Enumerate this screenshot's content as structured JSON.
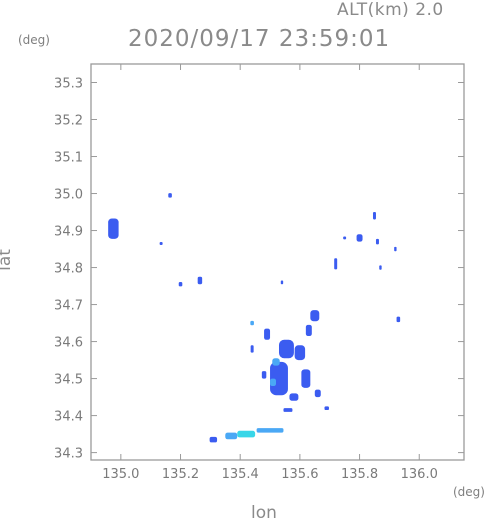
{
  "header": {
    "altitude_label": "ALT(km) 2.0",
    "timestamp": "2020/09/17 23:59:01"
  },
  "chart_data": {
    "type": "heatmap",
    "title": "2020/09/17 23:59:01",
    "xlabel": "lon",
    "ylabel": "lat",
    "x_unit": "(deg)",
    "y_unit": "(deg)",
    "xlim": [
      134.9,
      136.15
    ],
    "ylim": [
      34.28,
      35.35
    ],
    "x_ticks": [
      135.0,
      135.2,
      135.4,
      135.6,
      135.8,
      136.0
    ],
    "x_tick_labels": [
      "135.0",
      "135.2",
      "135.4",
      "135.6",
      "135.8",
      "136.0"
    ],
    "y_ticks": [
      34.3,
      34.4,
      34.5,
      34.6,
      34.7,
      34.8,
      34.9,
      35.0,
      35.1,
      35.2,
      35.3
    ],
    "y_tick_labels": [
      "34.3",
      "34.4",
      "34.5",
      "34.6",
      "34.7",
      "34.8",
      "34.9",
      "35.0",
      "35.1",
      "35.2",
      "35.3"
    ],
    "grid": false,
    "colors": {
      "echo_blue": "#3b5cf0",
      "echo_light": "#4aa8f5",
      "echo_cyan": "#38d6e8",
      "frame": "#9a9a9a"
    },
    "cells": [
      {
        "lon": 134.975,
        "lat": 34.905,
        "c": "echo_blue",
        "w": 0.035,
        "h": 0.055
      },
      {
        "lon": 135.165,
        "lat": 34.995,
        "c": "echo_blue",
        "w": 0.012,
        "h": 0.012
      },
      {
        "lon": 135.135,
        "lat": 34.865,
        "c": "echo_blue",
        "w": 0.01,
        "h": 0.008
      },
      {
        "lon": 135.265,
        "lat": 34.765,
        "c": "echo_blue",
        "w": 0.015,
        "h": 0.02
      },
      {
        "lon": 135.2,
        "lat": 34.755,
        "c": "echo_blue",
        "w": 0.012,
        "h": 0.012
      },
      {
        "lon": 135.54,
        "lat": 34.76,
        "c": "echo_blue",
        "w": 0.008,
        "h": 0.01
      },
      {
        "lon": 135.53,
        "lat": 34.5,
        "c": "echo_blue",
        "w": 0.06,
        "h": 0.09
      },
      {
        "lon": 135.555,
        "lat": 34.58,
        "c": "echo_blue",
        "w": 0.05,
        "h": 0.05
      },
      {
        "lon": 135.6,
        "lat": 34.57,
        "c": "echo_blue",
        "w": 0.035,
        "h": 0.04
      },
      {
        "lon": 135.62,
        "lat": 34.5,
        "c": "echo_blue",
        "w": 0.03,
        "h": 0.05
      },
      {
        "lon": 135.49,
        "lat": 34.62,
        "c": "echo_blue",
        "w": 0.02,
        "h": 0.03
      },
      {
        "lon": 135.65,
        "lat": 34.67,
        "c": "echo_blue",
        "w": 0.03,
        "h": 0.03
      },
      {
        "lon": 135.63,
        "lat": 34.63,
        "c": "echo_blue",
        "w": 0.02,
        "h": 0.03
      },
      {
        "lon": 135.58,
        "lat": 34.45,
        "c": "echo_blue",
        "w": 0.03,
        "h": 0.02
      },
      {
        "lon": 135.66,
        "lat": 34.46,
        "c": "echo_blue",
        "w": 0.02,
        "h": 0.02
      },
      {
        "lon": 135.56,
        "lat": 34.415,
        "c": "echo_blue",
        "w": 0.03,
        "h": 0.01
      },
      {
        "lon": 135.69,
        "lat": 34.42,
        "c": "echo_blue",
        "w": 0.015,
        "h": 0.01
      },
      {
        "lon": 135.48,
        "lat": 34.51,
        "c": "echo_blue",
        "w": 0.015,
        "h": 0.02
      },
      {
        "lon": 135.44,
        "lat": 34.58,
        "c": "echo_blue",
        "w": 0.01,
        "h": 0.02
      },
      {
        "lon": 135.52,
        "lat": 34.545,
        "c": "echo_light",
        "w": 0.025,
        "h": 0.02
      },
      {
        "lon": 135.51,
        "lat": 34.49,
        "c": "echo_light",
        "w": 0.02,
        "h": 0.02
      },
      {
        "lon": 135.44,
        "lat": 34.65,
        "c": "echo_light",
        "w": 0.012,
        "h": 0.012
      },
      {
        "lon": 135.8,
        "lat": 34.88,
        "c": "echo_blue",
        "w": 0.02,
        "h": 0.02
      },
      {
        "lon": 135.85,
        "lat": 34.94,
        "c": "echo_blue",
        "w": 0.01,
        "h": 0.02
      },
      {
        "lon": 135.86,
        "lat": 34.87,
        "c": "echo_blue",
        "w": 0.01,
        "h": 0.015
      },
      {
        "lon": 135.72,
        "lat": 34.81,
        "c": "echo_blue",
        "w": 0.01,
        "h": 0.03
      },
      {
        "lon": 135.87,
        "lat": 34.8,
        "c": "echo_blue",
        "w": 0.008,
        "h": 0.012
      },
      {
        "lon": 135.93,
        "lat": 34.66,
        "c": "echo_blue",
        "w": 0.012,
        "h": 0.015
      },
      {
        "lon": 135.92,
        "lat": 34.85,
        "c": "echo_blue",
        "w": 0.008,
        "h": 0.012
      },
      {
        "lon": 135.75,
        "lat": 34.88,
        "c": "echo_blue",
        "w": 0.01,
        "h": 0.008
      },
      {
        "lon": 135.31,
        "lat": 34.335,
        "c": "echo_blue",
        "w": 0.025,
        "h": 0.015
      },
      {
        "lon": 135.37,
        "lat": 34.345,
        "c": "echo_light",
        "w": 0.04,
        "h": 0.018
      },
      {
        "lon": 135.42,
        "lat": 34.35,
        "c": "echo_cyan",
        "w": 0.06,
        "h": 0.018
      },
      {
        "lon": 135.5,
        "lat": 34.36,
        "c": "echo_light",
        "w": 0.09,
        "h": 0.012
      }
    ]
  }
}
